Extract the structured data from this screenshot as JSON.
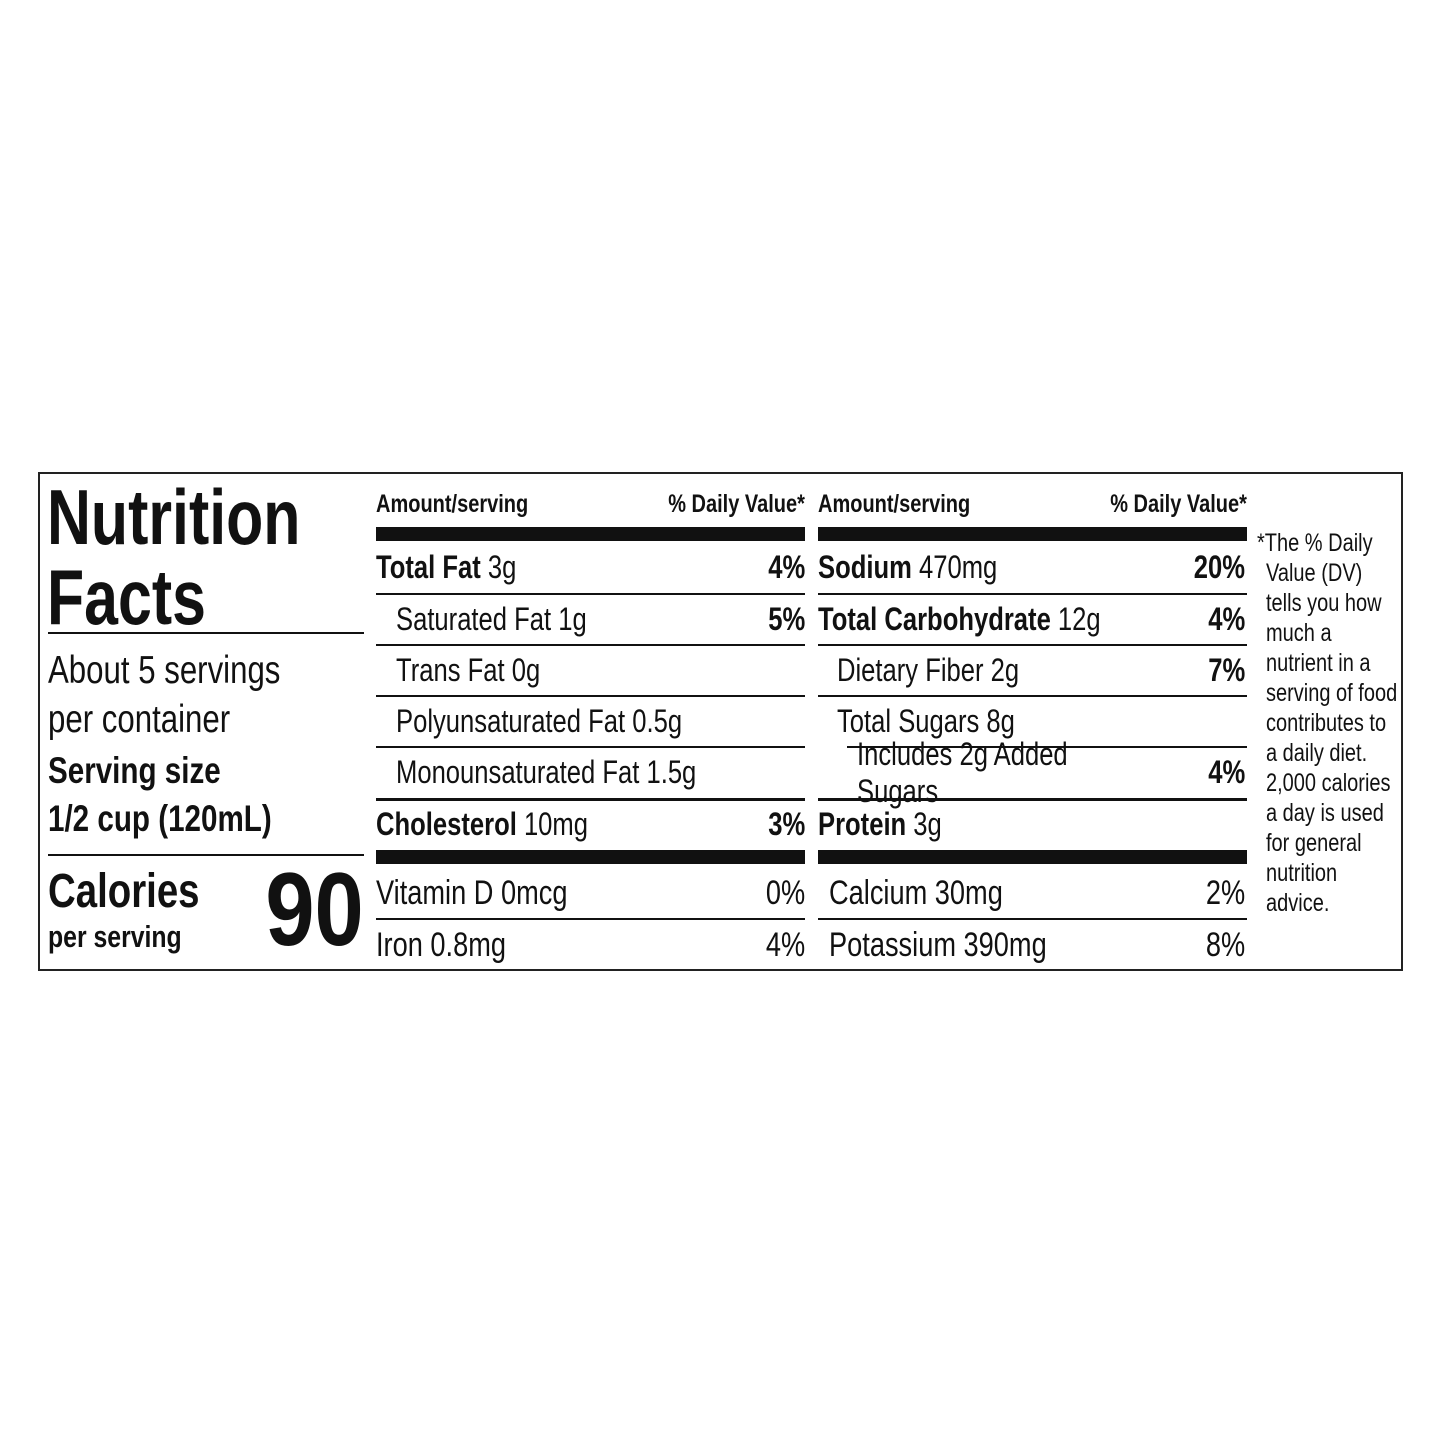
{
  "title_line1": "Nutrition",
  "title_line2": "Facts",
  "servings_line1": "About 5 servings",
  "servings_line2": "per container",
  "serving_size_label": "Serving size",
  "serving_size_value": "1/2 cup (120mL)",
  "calories_label": "Calories",
  "calories_sub": "per serving",
  "calories_value": "90",
  "header_amount": "Amount/serving",
  "header_dv": "% Daily Value*",
  "left_rows": [
    {
      "name": "Total Fat",
      "amount": "3g",
      "dv": "4%"
    },
    {
      "name": "Saturated Fat 1g",
      "amount": "",
      "dv": "5%"
    },
    {
      "name": "Trans Fat 0g",
      "amount": "",
      "dv": ""
    },
    {
      "name": "Polyunsaturated Fat 0.5g",
      "amount": "",
      "dv": ""
    },
    {
      "name": "Monounsaturated Fat 1.5g",
      "amount": "",
      "dv": ""
    },
    {
      "name": "Cholesterol",
      "amount": "10mg",
      "dv": "3%"
    }
  ],
  "right_rows": [
    {
      "name": "Sodium",
      "amount": "470mg",
      "dv": "20%"
    },
    {
      "name": "Total Carbohydrate",
      "amount": "12g",
      "dv": "4%"
    },
    {
      "name": "Dietary Fiber 2g",
      "amount": "",
      "dv": "7%"
    },
    {
      "name": "Total Sugars 8g",
      "amount": "",
      "dv": ""
    },
    {
      "name": "Includes 2g Added Sugars",
      "amount": "",
      "dv": "4%"
    },
    {
      "name": "Protein",
      "amount": "3g",
      "dv": ""
    }
  ],
  "vitamins": [
    {
      "name": "Vitamin D 0mcg",
      "dv": "0%"
    },
    {
      "name": "Iron 0.8mg",
      "dv": "4%"
    },
    {
      "name": "Calcium 30mg",
      "dv": "2%"
    },
    {
      "name": "Potassium 390mg",
      "dv": "8%"
    }
  ],
  "footnote": [
    "*The % Daily",
    "Value (DV)",
    "tells you how",
    "much a",
    "nutrient in a",
    "serving of food",
    "contributes to",
    "a daily diet.",
    "2,000 calories",
    "a day is used",
    "for general",
    "nutrition",
    "advice."
  ]
}
